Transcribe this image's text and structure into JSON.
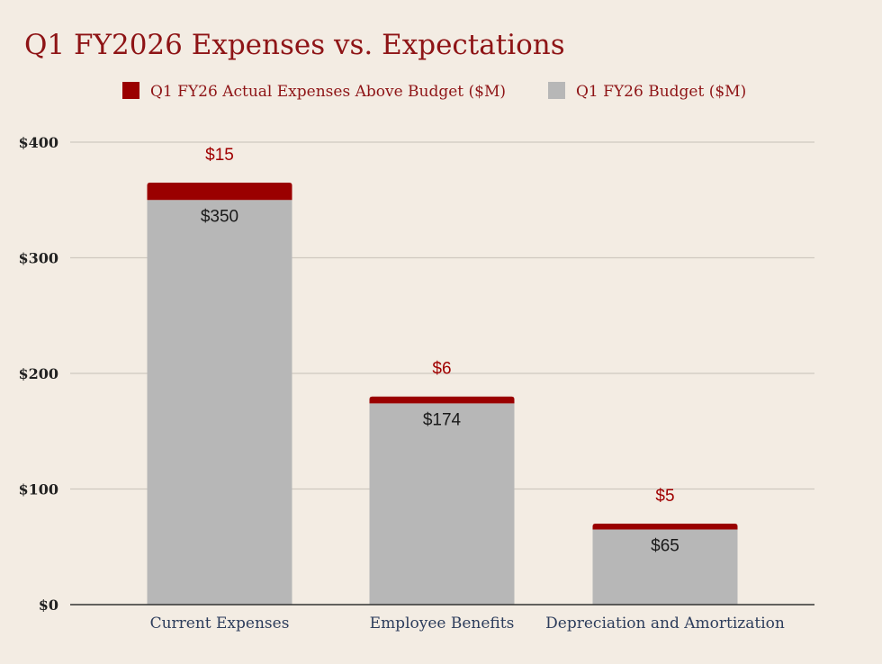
{
  "chart_data": {
    "type": "bar",
    "stacked": true,
    "title": "Q1 FY2026 Expenses vs. Expectations",
    "categories": [
      "Current Expenses",
      "Employee Benefits",
      "Depreciation and Amortization"
    ],
    "series": [
      {
        "name": "Q1 FY26 Budget ($M)",
        "values": [
          350,
          174,
          65
        ],
        "labels": [
          "$350",
          "$174",
          "$65"
        ],
        "color": "#b7b7b7",
        "label_color": "#1a1a1a"
      },
      {
        "name": "Q1 FY26 Actual Expenses Above Budget ($M)",
        "values": [
          15,
          6,
          5
        ],
        "labels": [
          "$15",
          "$6",
          "$5"
        ],
        "color": "#9a0000",
        "label_color": "#a00000"
      }
    ],
    "legend": [
      {
        "label": "Q1 FY26 Actual Expenses Above Budget ($M)",
        "color": "#9a0000"
      },
      {
        "label": "Q1 FY26 Budget ($M)",
        "color": "#b7b7b7"
      }
    ],
    "legend_position": "top",
    "ylim": [
      0,
      400
    ],
    "yticks": [
      0,
      100,
      200,
      300,
      400
    ],
    "ytick_labels": [
      "$0",
      "$100",
      "$200",
      "$300",
      "$400"
    ],
    "xlabel": "",
    "ylabel": "",
    "grid": true
  }
}
